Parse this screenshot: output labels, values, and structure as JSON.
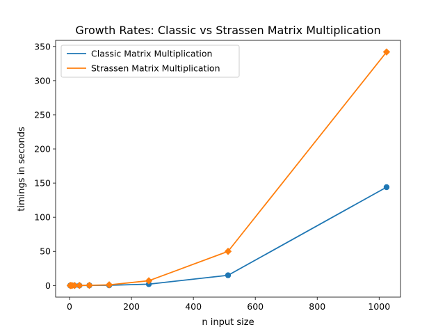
{
  "chart_data": {
    "type": "line",
    "title": "Growth Rates: Classic vs Strassen Matrix Multiplication",
    "xlabel": "n input size",
    "ylabel": "timings in seconds",
    "xlim": [
      -45,
      1069
    ],
    "ylim": [
      -17,
      359
    ],
    "xticks": [
      0,
      200,
      400,
      600,
      800,
      1000
    ],
    "yticks": [
      0,
      50,
      100,
      150,
      200,
      250,
      300,
      350
    ],
    "legend_position": "upper-left",
    "series": [
      {
        "name": "Classic Matrix Multiplication",
        "color": "#1f77b4",
        "marker": "circle",
        "x": [
          2,
          4,
          8,
          16,
          32,
          64,
          128,
          256,
          512,
          1024
        ],
        "y": [
          0,
          0,
          0,
          0,
          0.02,
          0.2,
          0.3,
          2,
          15,
          144
        ]
      },
      {
        "name": "Strassen Matrix Multiplication",
        "color": "#ff7f0e",
        "marker": "diamond",
        "x": [
          2,
          4,
          8,
          16,
          32,
          64,
          128,
          256,
          512,
          1024
        ],
        "y": [
          0,
          0,
          0,
          0,
          0.1,
          0.3,
          1,
          7,
          50,
          342
        ]
      }
    ]
  }
}
